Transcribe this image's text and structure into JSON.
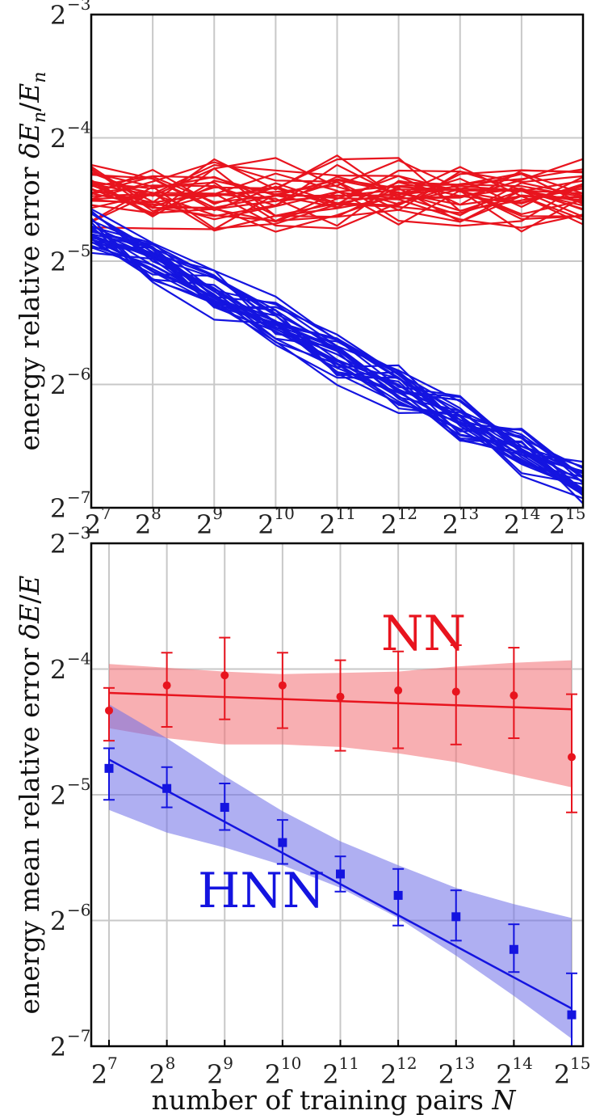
{
  "chart_data": [
    {
      "type": "line",
      "panel": "top",
      "ylabel_prefix": "energy relative error",
      "ylabel_math": "δE_n/E_n",
      "xscale": "log2",
      "yscale": "log2",
      "xlim_exp": [
        7,
        15
      ],
      "ylim_exp": [
        -7,
        -3
      ],
      "x_tick_exponents": [
        "7",
        "8",
        "9",
        "10",
        "11",
        "12",
        "13",
        "14",
        "15"
      ],
      "y_tick_exponents": [
        "-7",
        "-6",
        "-5",
        "-4",
        "-3"
      ],
      "grid": true,
      "series_groups": [
        {
          "name": "NN",
          "color": "#e8141e",
          "count": 30,
          "trend_start_exp": -4.45,
          "trend_end_exp": -4.5,
          "spread": 0.45
        },
        {
          "name": "HNN",
          "color": "#1414e0",
          "count": 30,
          "trend_start_exp": -4.75,
          "trend_end_exp": -6.8,
          "spread": 0.3
        }
      ]
    },
    {
      "type": "scatter",
      "panel": "bottom",
      "xlabel_prefix": "number of training pairs",
      "xlabel_math": "N",
      "ylabel_prefix": "energy mean relative error",
      "ylabel_math": "δE/E",
      "xscale": "log2",
      "yscale": "log2",
      "xlim_exp": [
        7,
        15
      ],
      "ylim_exp": [
        -7,
        -3
      ],
      "x_tick_exponents": [
        "7",
        "8",
        "9",
        "10",
        "11",
        "12",
        "13",
        "14",
        "15"
      ],
      "y_tick_exponents": [
        "-7",
        "-6",
        "-5",
        "-4",
        "-3"
      ],
      "grid": true,
      "annotations": {
        "nn": "NN",
        "hnn": "HNN"
      },
      "series": [
        {
          "name": "NN",
          "color": "#e8141e",
          "marker": "circle",
          "x_exp": [
            7,
            8,
            9,
            10,
            11,
            12,
            13,
            14,
            15
          ],
          "y_exp": [
            -4.33,
            -4.13,
            -4.05,
            -4.13,
            -4.22,
            -4.17,
            -4.18,
            -4.21,
            -4.7
          ],
          "err_hi_exp": [
            -4.15,
            -3.87,
            -3.75,
            -3.87,
            -3.93,
            -3.86,
            -3.81,
            -3.83,
            -4.2
          ],
          "err_lo_exp": [
            -4.57,
            -4.46,
            -4.4,
            -4.47,
            -4.65,
            -4.63,
            -4.6,
            -4.55,
            -5.14
          ],
          "fit_exp": [
            -4.19,
            -4.32
          ],
          "band_hi_exp": [
            -3.96,
            -3.99,
            -4.02,
            -4.04,
            -4.03,
            -4.02,
            -3.98,
            -3.95,
            -3.93
          ],
          "band_lo_exp": [
            -4.47,
            -4.55,
            -4.6,
            -4.6,
            -4.62,
            -4.67,
            -4.74,
            -4.84,
            -4.94
          ]
        },
        {
          "name": "HNN",
          "color": "#1414e0",
          "marker": "square",
          "x_exp": [
            7,
            8,
            9,
            10,
            11,
            12,
            13,
            14,
            15
          ],
          "y_exp": [
            -4.79,
            -4.95,
            -5.1,
            -5.38,
            -5.63,
            -5.8,
            -5.97,
            -6.23,
            -6.75
          ],
          "err_hi_exp": [
            -4.63,
            -4.78,
            -4.91,
            -5.2,
            -5.49,
            -5.59,
            -5.76,
            -6.03,
            -6.42
          ],
          "err_lo_exp": [
            -5.04,
            -5.1,
            -5.28,
            -5.55,
            -5.77,
            -6.04,
            -6.16,
            -6.41,
            -7.0
          ],
          "fit_exp": [
            -4.72,
            -6.7
          ],
          "band_hi_exp": [
            -4.28,
            -4.55,
            -4.85,
            -5.13,
            -5.37,
            -5.56,
            -5.74,
            -5.87,
            -5.98
          ],
          "band_lo_exp": [
            -5.12,
            -5.3,
            -5.42,
            -5.56,
            -5.74,
            -5.98,
            -6.28,
            -6.6,
            -6.94
          ]
        }
      ]
    }
  ]
}
